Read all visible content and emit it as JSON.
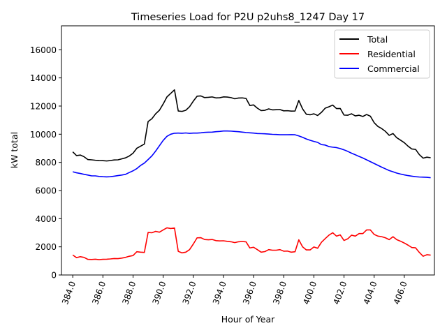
{
  "chart_data": {
    "type": "line",
    "title": "Timeseries Load for P2U p2uhs8_1247  Day 17",
    "xlabel": "Hour of Year",
    "ylabel": "kW total",
    "xlim": [
      383.25,
      408.0
    ],
    "ylim": [
      0,
      17700
    ],
    "xticks": [
      384,
      386,
      388,
      390,
      392,
      394,
      396,
      398,
      400,
      402,
      404,
      406
    ],
    "xtick_labels": [
      "384.0",
      "386.0",
      "388.0",
      "390.0",
      "392.0",
      "394.0",
      "396.0",
      "398.0",
      "400.0",
      "402.0",
      "404.0",
      "406.0"
    ],
    "yticks": [
      0,
      2000,
      4000,
      6000,
      8000,
      10000,
      12000,
      14000,
      16000
    ],
    "ytick_labels": [
      "0",
      "2000",
      "4000",
      "6000",
      "8000",
      "10000",
      "12000",
      "14000",
      "16000"
    ],
    "legend_position": "top-right",
    "x": [
      384.0,
      384.25,
      384.5,
      384.75,
      385.0,
      385.25,
      385.5,
      385.75,
      386.0,
      386.25,
      386.5,
      386.75,
      387.0,
      387.25,
      387.5,
      387.75,
      388.0,
      388.25,
      388.5,
      388.75,
      389.0,
      389.25,
      389.5,
      389.75,
      390.0,
      390.25,
      390.5,
      390.75,
      391.0,
      391.25,
      391.5,
      391.75,
      392.0,
      392.25,
      392.5,
      392.75,
      393.0,
      393.25,
      393.5,
      393.75,
      394.0,
      394.25,
      394.5,
      394.75,
      395.0,
      395.25,
      395.5,
      395.75,
      396.0,
      396.25,
      396.5,
      396.75,
      397.0,
      397.25,
      397.5,
      397.75,
      398.0,
      398.25,
      398.5,
      398.75,
      399.0,
      399.25,
      399.5,
      399.75,
      400.0,
      400.25,
      400.5,
      400.75,
      401.0,
      401.25,
      401.5,
      401.75,
      402.0,
      402.25,
      402.5,
      402.75,
      403.0,
      403.25,
      403.5,
      403.75,
      404.0,
      404.25,
      404.5,
      404.75,
      405.0,
      405.25,
      405.5,
      405.75,
      406.0,
      406.25,
      406.5,
      406.75,
      407.0,
      407.25,
      407.5,
      407.75
    ],
    "series": [
      {
        "name": "Total",
        "color": "#000000",
        "values": [
          8750,
          8480,
          8520,
          8400,
          8200,
          8180,
          8150,
          8130,
          8120,
          8100,
          8130,
          8170,
          8180,
          8250,
          8320,
          8450,
          8650,
          9000,
          9150,
          9300,
          10900,
          11100,
          11450,
          11700,
          12150,
          12650,
          12900,
          13150,
          11650,
          11620,
          11700,
          11950,
          12350,
          12700,
          12720,
          12600,
          12620,
          12650,
          12580,
          12590,
          12650,
          12640,
          12600,
          12520,
          12570,
          12580,
          12540,
          12040,
          12080,
          11850,
          11680,
          11700,
          11800,
          11730,
          11740,
          11750,
          11660,
          11670,
          11640,
          11650,
          12400,
          11800,
          11420,
          11380,
          11450,
          11330,
          11550,
          11850,
          11950,
          12070,
          11820,
          11830,
          11360,
          11350,
          11450,
          11300,
          11350,
          11260,
          11400,
          11280,
          10820,
          10550,
          10400,
          10200,
          9920,
          10050,
          9750,
          9580,
          9400,
          9150,
          8950,
          8920,
          8550,
          8300,
          8370,
          8330
        ]
      },
      {
        "name": "Residential",
        "color": "#ff0000",
        "values": [
          1420,
          1230,
          1300,
          1250,
          1110,
          1100,
          1120,
          1090,
          1110,
          1120,
          1140,
          1170,
          1160,
          1200,
          1250,
          1330,
          1380,
          1650,
          1620,
          1600,
          3020,
          3000,
          3100,
          3040,
          3200,
          3350,
          3300,
          3340,
          1680,
          1570,
          1620,
          1800,
          2200,
          2640,
          2650,
          2520,
          2500,
          2520,
          2440,
          2420,
          2430,
          2390,
          2360,
          2300,
          2360,
          2380,
          2350,
          1920,
          1970,
          1800,
          1620,
          1660,
          1800,
          1760,
          1760,
          1800,
          1690,
          1700,
          1620,
          1650,
          2500,
          2000,
          1780,
          1780,
          1990,
          1900,
          2320,
          2580,
          2830,
          3000,
          2760,
          2850,
          2450,
          2570,
          2830,
          2760,
          2940,
          2940,
          3200,
          3200,
          2880,
          2760,
          2720,
          2640,
          2510,
          2720,
          2510,
          2400,
          2270,
          2120,
          1950,
          1930,
          1600,
          1330,
          1440,
          1410
        ]
      },
      {
        "name": "Commercial",
        "color": "#0000ff",
        "values": [
          7330,
          7260,
          7210,
          7150,
          7100,
          7040,
          7040,
          7000,
          6980,
          6970,
          6980,
          7020,
          7060,
          7100,
          7150,
          7280,
          7400,
          7560,
          7780,
          7950,
          8200,
          8460,
          8800,
          9180,
          9560,
          9850,
          10000,
          10070,
          10080,
          10070,
          10090,
          10060,
          10080,
          10080,
          10100,
          10130,
          10140,
          10150,
          10180,
          10200,
          10230,
          10230,
          10220,
          10200,
          10180,
          10150,
          10120,
          10100,
          10080,
          10050,
          10040,
          10030,
          10010,
          9990,
          9980,
          9960,
          9960,
          9960,
          9970,
          9960,
          9880,
          9780,
          9660,
          9570,
          9490,
          9420,
          9260,
          9230,
          9120,
          9080,
          9050,
          8980,
          8890,
          8780,
          8650,
          8540,
          8420,
          8310,
          8180,
          8050,
          7920,
          7790,
          7660,
          7540,
          7420,
          7330,
          7240,
          7170,
          7110,
          7060,
          7020,
          6980,
          6960,
          6950,
          6940,
          6910
        ]
      }
    ]
  }
}
